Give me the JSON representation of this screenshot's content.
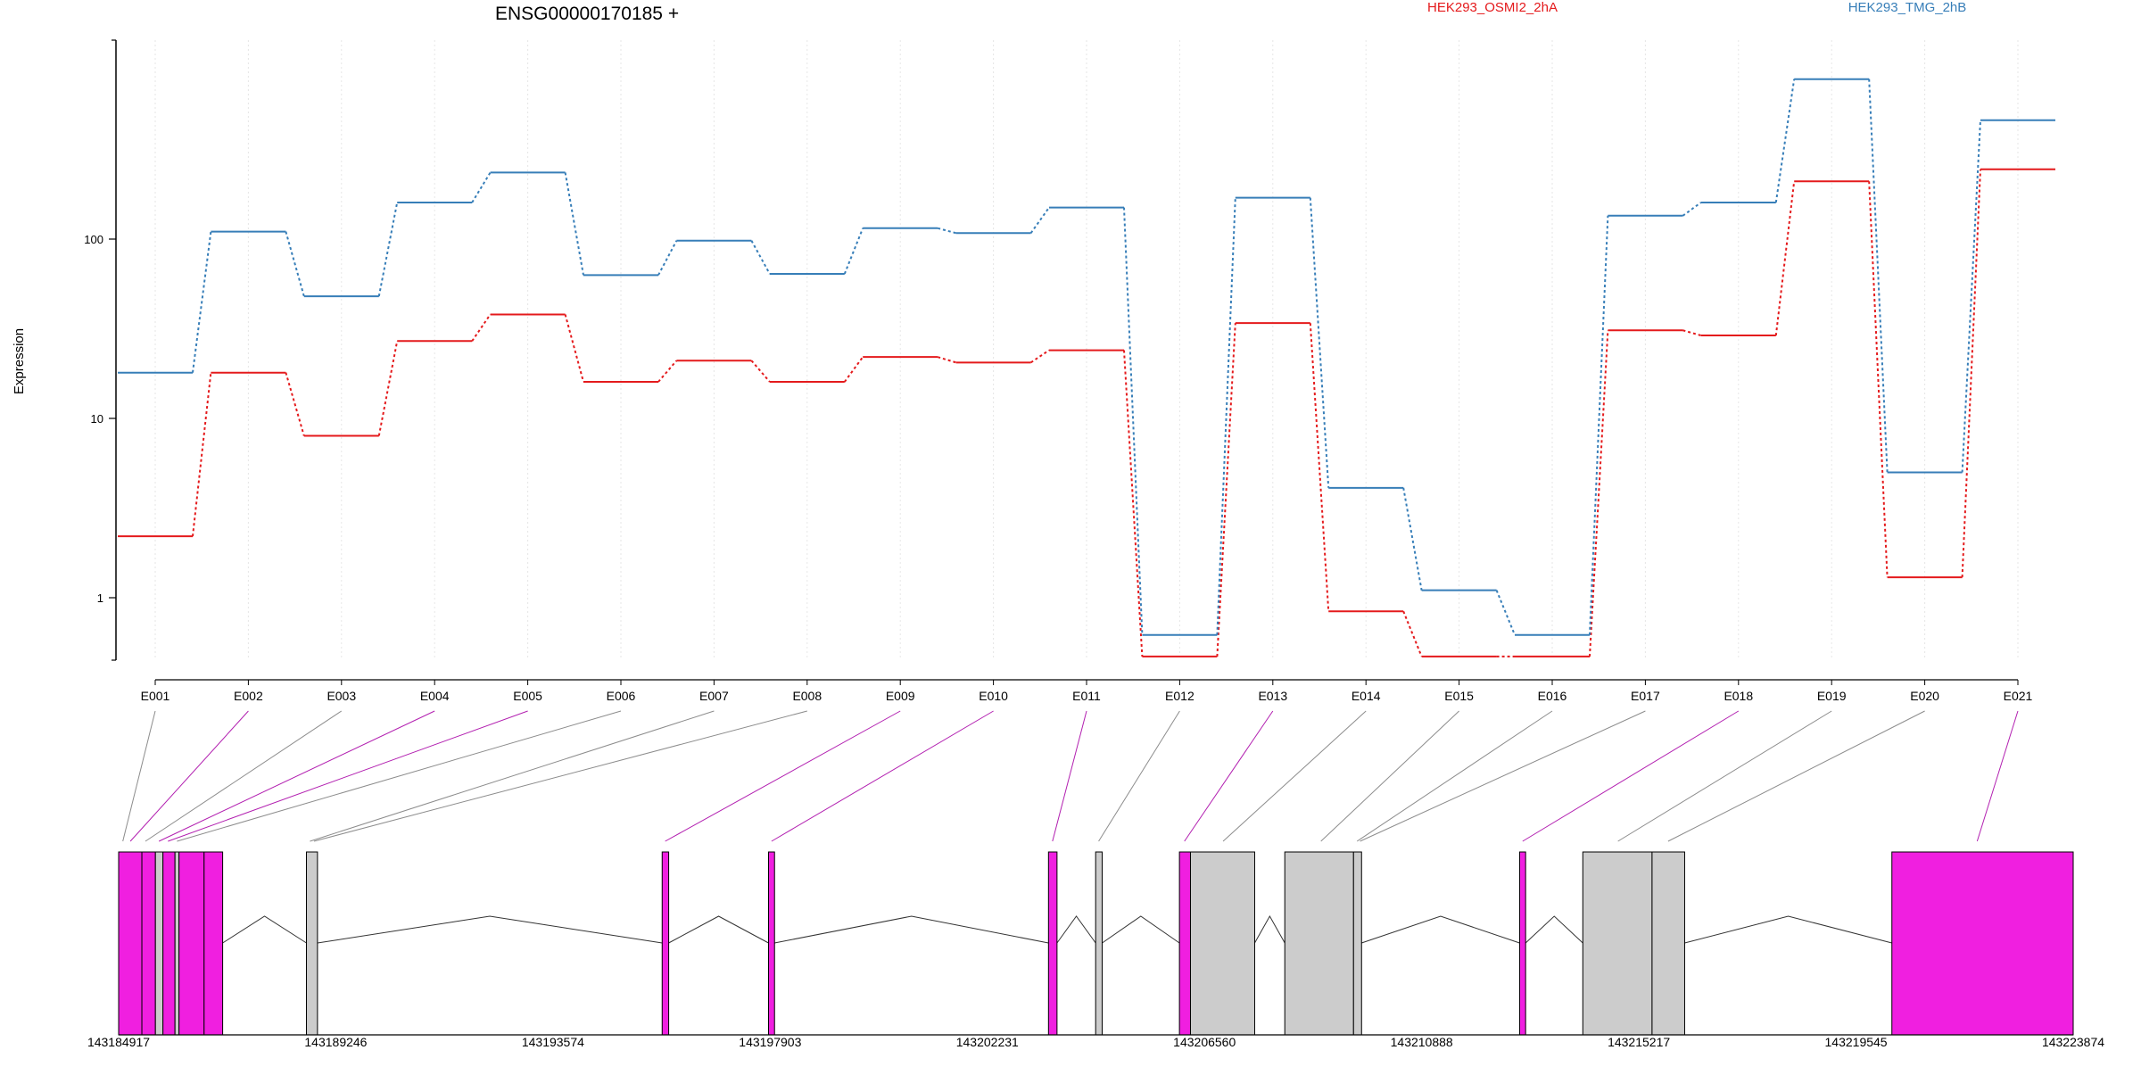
{
  "chart_data": {
    "type": "line",
    "title": "ENSG00000170185 +",
    "ylabel": "Expression",
    "y_scale": "log",
    "ylim": [
      0.4,
      800
    ],
    "y_ticks": [
      {
        "value": 1,
        "label": "1"
      },
      {
        "value": 10,
        "label": "10"
      },
      {
        "value": 100,
        "label": "100"
      }
    ],
    "grid": "vertical",
    "legend_position": "top",
    "categories": [
      "E001",
      "E002",
      "E003",
      "E004",
      "E005",
      "E006",
      "E007",
      "E008",
      "E009",
      "E010",
      "E011",
      "E012",
      "E013",
      "E014",
      "E015",
      "E016",
      "E017",
      "E018",
      "E019",
      "E020",
      "E021"
    ],
    "series": [
      {
        "name": "HEK293_OSMI2_2hA",
        "color": "#e41a1c",
        "values": [
          2.2,
          18,
          8,
          27,
          38,
          16,
          21,
          16,
          22,
          20.5,
          24,
          0.47,
          34,
          0.84,
          0.47,
          0.47,
          31,
          29,
          210,
          1.3,
          245
        ]
      },
      {
        "name": "HEK293_TMG_2hB",
        "color": "#377eb8",
        "values": [
          18,
          110,
          48,
          160,
          235,
          63,
          98,
          64,
          115,
          108,
          150,
          0.62,
          170,
          4.1,
          1.1,
          0.62,
          135,
          160,
          780,
          5,
          460
        ]
      }
    ],
    "gene_model": {
      "coordinate_range": [
        143184917,
        143223874
      ],
      "coordinate_ticks": [
        "143184917",
        "143189246",
        "143193574",
        "143197903",
        "143202231",
        "143206560",
        "143210888",
        "143215217",
        "143219545",
        "143223874"
      ],
      "highlight_color": "#f01fe0",
      "exons": [
        {
          "start": 143184917,
          "end": 143185380,
          "highlight": true
        },
        {
          "start": 143185380,
          "end": 143185650,
          "highlight": true
        },
        {
          "start": 143185650,
          "end": 143185800,
          "highlight": false
        },
        {
          "start": 143185800,
          "end": 143186040,
          "highlight": true
        },
        {
          "start": 143186040,
          "end": 143186120,
          "highlight": false
        },
        {
          "start": 143186120,
          "end": 143186620,
          "highlight": true
        },
        {
          "start": 143186620,
          "end": 143186990,
          "highlight": true
        },
        {
          "start": 143188660,
          "end": 143188880,
          "highlight": false
        },
        {
          "start": 143195750,
          "end": 143195880,
          "highlight": true
        },
        {
          "start": 143197870,
          "end": 143197990,
          "highlight": true
        },
        {
          "start": 143203450,
          "end": 143203620,
          "highlight": true
        },
        {
          "start": 143204390,
          "end": 143204520,
          "highlight": false
        },
        {
          "start": 143206060,
          "end": 143206280,
          "highlight": true
        },
        {
          "start": 143206280,
          "end": 143207560,
          "highlight": false
        },
        {
          "start": 143208160,
          "end": 143209530,
          "highlight": false
        },
        {
          "start": 143209530,
          "end": 143209690,
          "highlight": false
        },
        {
          "start": 143212840,
          "end": 143212960,
          "highlight": true
        },
        {
          "start": 143214100,
          "end": 143215480,
          "highlight": false
        },
        {
          "start": 143215480,
          "end": 143216130,
          "highlight": false
        },
        {
          "start": 143220260,
          "end": 143223874,
          "highlight": true
        }
      ],
      "introns": [
        [
          143186990,
          143188660
        ],
        [
          143188880,
          143195750
        ],
        [
          143195880,
          143197870
        ],
        [
          143197990,
          143203450
        ],
        [
          143203620,
          143204390
        ],
        [
          143204520,
          143206060
        ],
        [
          143207560,
          143208160
        ],
        [
          143209690,
          143212840
        ],
        [
          143212960,
          143214100
        ],
        [
          143216130,
          143220260
        ]
      ],
      "bin_links": [
        {
          "exon": "E001",
          "coord": 143185000,
          "highlight": false
        },
        {
          "exon": "E002",
          "coord": 143185150,
          "highlight": true
        },
        {
          "exon": "E003",
          "coord": 143185450,
          "highlight": false
        },
        {
          "exon": "E004",
          "coord": 143185720,
          "highlight": true
        },
        {
          "exon": "E005",
          "coord": 143185900,
          "highlight": true
        },
        {
          "exon": "E006",
          "coord": 143186080,
          "highlight": false
        },
        {
          "exon": "E007",
          "coord": 143188730,
          "highlight": false
        },
        {
          "exon": "E008",
          "coord": 143188810,
          "highlight": false
        },
        {
          "exon": "E009",
          "coord": 143195810,
          "highlight": true
        },
        {
          "exon": "E010",
          "coord": 143197930,
          "highlight": true
        },
        {
          "exon": "E011",
          "coord": 143203530,
          "highlight": true
        },
        {
          "exon": "E012",
          "coord": 143204450,
          "highlight": false
        },
        {
          "exon": "E013",
          "coord": 143206160,
          "highlight": true
        },
        {
          "exon": "E014",
          "coord": 143206930,
          "highlight": false
        },
        {
          "exon": "E015",
          "coord": 143208880,
          "highlight": false
        },
        {
          "exon": "E016",
          "coord": 143209600,
          "highlight": false
        },
        {
          "exon": "E017",
          "coord": 143209660,
          "highlight": false
        },
        {
          "exon": "E018",
          "coord": 143212900,
          "highlight": true
        },
        {
          "exon": "E019",
          "coord": 143214800,
          "highlight": false
        },
        {
          "exon": "E020",
          "coord": 143215800,
          "highlight": false
        },
        {
          "exon": "E021",
          "coord": 143221960,
          "highlight": true
        }
      ]
    }
  }
}
